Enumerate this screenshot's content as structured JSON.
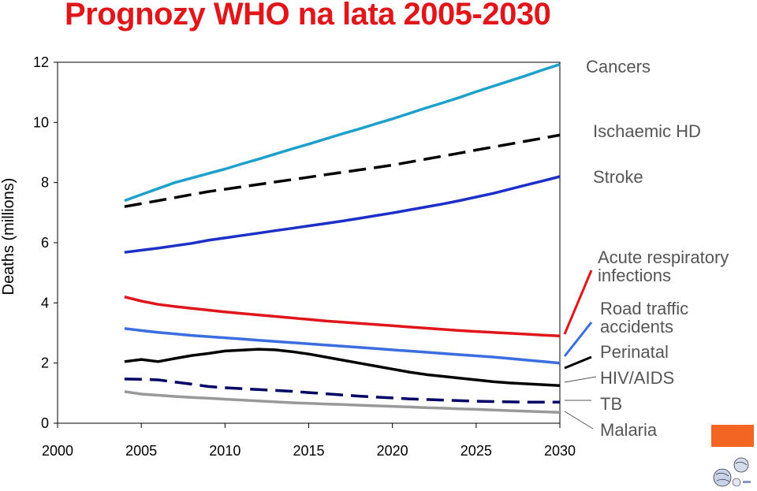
{
  "title": "Prognozy WHO na lata 2005-2030",
  "chart_data": {
    "type": "line",
    "title": "Prognozy WHO na lata 2005-2030",
    "xlabel": "",
    "ylabel": "Deaths (millions)",
    "xlim": [
      2000,
      2030
    ],
    "ylim": [
      0,
      12
    ],
    "xticks": [
      2000,
      2005,
      2010,
      2015,
      2020,
      2025,
      2030
    ],
    "yticks": [
      0,
      2,
      4,
      6,
      8,
      10,
      12
    ],
    "grid": false,
    "x": [
      2004,
      2005,
      2006,
      2007,
      2008,
      2009,
      2010,
      2011,
      2012,
      2013,
      2014,
      2015,
      2016,
      2017,
      2018,
      2019,
      2020,
      2021,
      2022,
      2023,
      2024,
      2025,
      2026,
      2027,
      2028,
      2029,
      2030
    ],
    "series": [
      {
        "name": "Cancers",
        "color": "#1ea0cd",
        "dash": false,
        "values": [
          7.4,
          7.6,
          7.8,
          8.0,
          8.15,
          8.3,
          8.45,
          8.62,
          8.78,
          8.95,
          9.12,
          9.28,
          9.45,
          9.62,
          9.78,
          9.95,
          10.12,
          10.3,
          10.48,
          10.65,
          10.83,
          11.02,
          11.2,
          11.38,
          11.56,
          11.75,
          11.93
        ]
      },
      {
        "name": "Ischaemic HD",
        "color": "#000000",
        "dash": true,
        "values": [
          7.2,
          7.3,
          7.4,
          7.5,
          7.6,
          7.7,
          7.78,
          7.86,
          7.94,
          8.02,
          8.1,
          8.18,
          8.26,
          8.34,
          8.42,
          8.5,
          8.58,
          8.68,
          8.78,
          8.88,
          8.98,
          9.08,
          9.18,
          9.28,
          9.38,
          9.48,
          9.58
        ]
      },
      {
        "name": "Stroke",
        "color": "#1c2fc8",
        "dash": false,
        "values": [
          5.68,
          5.75,
          5.82,
          5.9,
          5.98,
          6.08,
          6.16,
          6.24,
          6.32,
          6.4,
          6.48,
          6.56,
          6.64,
          6.72,
          6.81,
          6.9,
          6.99,
          7.09,
          7.19,
          7.29,
          7.4,
          7.52,
          7.64,
          7.78,
          7.92,
          8.06,
          8.2
        ]
      },
      {
        "name": "Acute respiratory infections",
        "color": "#e0161b",
        "dash": false,
        "values": [
          4.2,
          4.06,
          3.95,
          3.88,
          3.82,
          3.76,
          3.7,
          3.65,
          3.6,
          3.55,
          3.5,
          3.45,
          3.4,
          3.36,
          3.32,
          3.28,
          3.24,
          3.2,
          3.16,
          3.12,
          3.08,
          3.05,
          3.02,
          2.99,
          2.96,
          2.93,
          2.9
        ]
      },
      {
        "name": "Road traffic accidents",
        "color": "#3a6ee0",
        "dash": false,
        "values": [
          3.15,
          3.08,
          3.02,
          2.97,
          2.92,
          2.88,
          2.84,
          2.8,
          2.76,
          2.72,
          2.68,
          2.64,
          2.6,
          2.56,
          2.52,
          2.48,
          2.44,
          2.4,
          2.36,
          2.32,
          2.28,
          2.24,
          2.2,
          2.15,
          2.1,
          2.05,
          2.0
        ]
      },
      {
        "name": "Perinatal",
        "color": "#000000",
        "dash": false,
        "values": [
          2.05,
          2.12,
          2.05,
          2.15,
          2.25,
          2.32,
          2.4,
          2.43,
          2.46,
          2.44,
          2.38,
          2.3,
          2.2,
          2.1,
          2.0,
          1.9,
          1.8,
          1.7,
          1.62,
          1.56,
          1.5,
          1.44,
          1.38,
          1.34,
          1.31,
          1.28,
          1.25
        ]
      },
      {
        "name": "HIV/AIDS",
        "color": "#000066",
        "dash": true,
        "values": [
          1.47,
          1.46,
          1.44,
          1.37,
          1.3,
          1.22,
          1.18,
          1.15,
          1.12,
          1.09,
          1.06,
          1.02,
          0.98,
          0.94,
          0.9,
          0.87,
          0.84,
          0.81,
          0.79,
          0.77,
          0.75,
          0.73,
          0.72,
          0.71,
          0.7,
          0.7,
          0.7
        ]
      },
      {
        "name": "TB",
        "color": "#999999",
        "dash": false,
        "values": [
          1.05,
          0.97,
          0.93,
          0.89,
          0.86,
          0.83,
          0.8,
          0.77,
          0.74,
          0.71,
          0.68,
          0.66,
          0.64,
          0.62,
          0.6,
          0.58,
          0.56,
          0.54,
          0.52,
          0.5,
          0.48,
          0.46,
          0.44,
          0.42,
          0.4,
          0.38,
          0.36
        ]
      }
    ],
    "legend_labels": [
      {
        "text": "Cancers",
        "color": "#555555"
      },
      {
        "text": "Ischaemic HD",
        "color": "#555555"
      },
      {
        "text": "Stroke",
        "color": "#555555"
      },
      {
        "text": "Acute respiratory",
        "color": "#555555"
      },
      {
        "text": "infections",
        "color": "#555555"
      },
      {
        "text": "Road traffic",
        "color": "#555555"
      },
      {
        "text": "accidents",
        "color": "#555555"
      },
      {
        "text": "Perinatal",
        "color": "#555555"
      },
      {
        "text": "HIV/AIDS",
        "color": "#555555"
      },
      {
        "text": "TB",
        "color": "#555555"
      },
      {
        "text": "Malaria",
        "color": "#555555"
      }
    ],
    "legend_placement": "right"
  }
}
